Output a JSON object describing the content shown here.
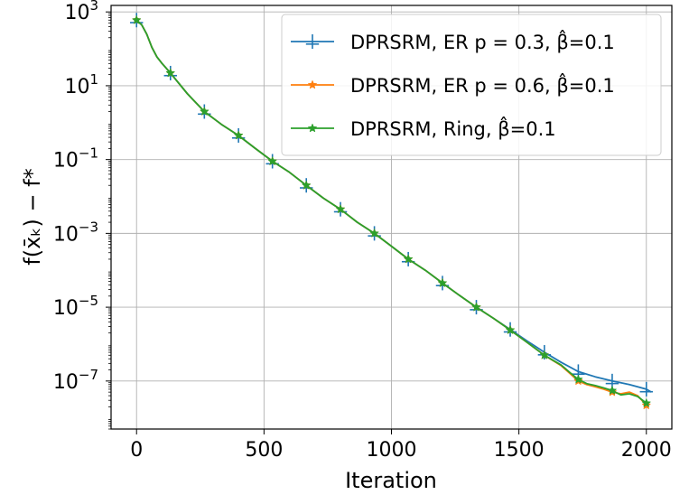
{
  "chart_data": {
    "type": "line",
    "xlabel": "Iteration",
    "ylabel": "f(x̄ₖ) − f*",
    "yscale": "log",
    "xlim": [
      -100,
      2100
    ],
    "ylim": [
      5e-09,
      1500
    ],
    "xticks": [
      0,
      500,
      1000,
      1500,
      2000
    ],
    "xtick_labels": [
      "0",
      "500",
      "1000",
      "1500",
      "2000"
    ],
    "ytick_exponents": [
      3,
      1,
      -1,
      -3,
      -5,
      -7
    ],
    "grid": true,
    "legend_position": "top-right",
    "series": [
      {
        "name": "DPRSRM, ER p = 0.3, β̂=0.1",
        "color": "#1f77b4",
        "marker": "tri-cross",
        "x": [
          0,
          20,
          40,
          60,
          80,
          100,
          133,
          200,
          266,
          333,
          400,
          466,
          533,
          600,
          666,
          733,
          800,
          866,
          933,
          1000,
          1066,
          1133,
          1200,
          1266,
          1333,
          1400,
          1466,
          1533,
          1600,
          1666,
          1733,
          1800,
          1866,
          1900,
          1933,
          1966,
          2000,
          2020
        ],
        "y": [
          600,
          450,
          250,
          110,
          60,
          40,
          22,
          6,
          2,
          0.9,
          0.45,
          0.2,
          0.09,
          0.045,
          0.02,
          0.009,
          0.0045,
          0.002,
          0.001,
          0.00045,
          0.0002,
          0.0001,
          4.5e-05,
          2.1e-05,
          1e-05,
          5e-06,
          2.5e-06,
          1.2e-06,
          6e-07,
          3.2e-07,
          1.8e-07,
          1.3e-07,
          1e-07,
          9e-08,
          8e-08,
          7e-08,
          6e-08,
          5e-08
        ],
        "marker_x": [
          0,
          133,
          266,
          400,
          533,
          666,
          800,
          933,
          1066,
          1200,
          1333,
          1466,
          1600,
          1733,
          1866,
          2000
        ]
      },
      {
        "name": "DPRSRM, ER p = 0.6, β̂=0.1",
        "color": "#ff7f0e",
        "marker": "star",
        "x": [
          0,
          20,
          40,
          60,
          80,
          100,
          133,
          200,
          266,
          333,
          400,
          466,
          533,
          600,
          666,
          733,
          800,
          866,
          933,
          1000,
          1066,
          1133,
          1200,
          1266,
          1333,
          1400,
          1466,
          1533,
          1600,
          1666,
          1700,
          1733,
          1766,
          1800,
          1833,
          1866,
          1900,
          1933,
          1966,
          2000
        ],
        "y": [
          600,
          450,
          250,
          110,
          60,
          40,
          22,
          6,
          2,
          0.9,
          0.45,
          0.2,
          0.09,
          0.045,
          0.02,
          0.009,
          0.0045,
          0.002,
          0.001,
          0.00045,
          0.0002,
          0.0001,
          4.5e-05,
          2.1e-05,
          1e-05,
          5e-06,
          2.4e-06,
          1.1e-06,
          5e-07,
          2.6e-07,
          1.6e-07,
          1e-07,
          8e-08,
          7e-08,
          6e-08,
          5e-08,
          4.5e-08,
          5e-08,
          4e-08,
          2.2e-08
        ],
        "marker_x": [
          0,
          133,
          266,
          400,
          533,
          666,
          800,
          933,
          1066,
          1200,
          1333,
          1466,
          1600,
          1733,
          1866,
          2000
        ]
      },
      {
        "name": "DPRSRM, Ring, β̂=0.1",
        "color": "#2ca02c",
        "marker": "star",
        "x": [
          0,
          20,
          40,
          60,
          80,
          100,
          133,
          200,
          266,
          333,
          400,
          466,
          533,
          600,
          666,
          733,
          800,
          866,
          933,
          1000,
          1066,
          1133,
          1200,
          1266,
          1333,
          1400,
          1466,
          1533,
          1600,
          1666,
          1700,
          1733,
          1766,
          1800,
          1833,
          1866,
          1900,
          1933,
          1966,
          2000
        ],
        "y": [
          600,
          450,
          250,
          110,
          60,
          40,
          22,
          6,
          2,
          0.9,
          0.45,
          0.2,
          0.09,
          0.045,
          0.02,
          0.009,
          0.0045,
          0.002,
          0.001,
          0.00045,
          0.0002,
          0.0001,
          4.5e-05,
          2.1e-05,
          1e-05,
          5e-06,
          2.4e-06,
          1.1e-06,
          5e-07,
          2.7e-07,
          1.7e-07,
          1.1e-07,
          8.5e-08,
          7.5e-08,
          6.5e-08,
          5.5e-08,
          4.2e-08,
          4.5e-08,
          3.8e-08,
          2.5e-08
        ],
        "marker_x": [
          0,
          133,
          266,
          400,
          533,
          666,
          800,
          933,
          1066,
          1200,
          1333,
          1466,
          1600,
          1733,
          1866,
          2000
        ]
      }
    ]
  }
}
